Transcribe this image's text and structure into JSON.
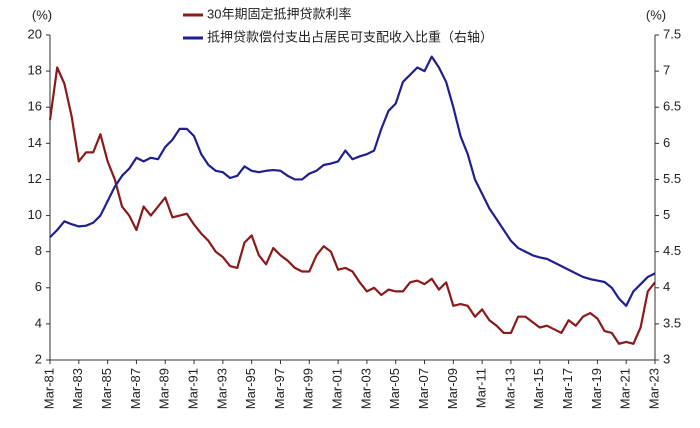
{
  "chart_data": {
    "type": "line",
    "y_label": "(%)",
    "y2_label": "(%)",
    "categories": [
      "Mar-81",
      null,
      null,
      null,
      "Mar-83",
      null,
      null,
      null,
      "Mar-85",
      null,
      null,
      null,
      "Mar-87",
      null,
      null,
      null,
      "Mar-89",
      null,
      null,
      null,
      "Mar-91",
      null,
      null,
      null,
      "Mar-93",
      null,
      null,
      null,
      "Mar-95",
      null,
      null,
      null,
      "Mar-97",
      null,
      null,
      null,
      "Mar-99",
      null,
      null,
      null,
      "Mar-01",
      null,
      null,
      null,
      "Mar-03",
      null,
      null,
      null,
      "Mar-05",
      null,
      null,
      null,
      "Mar-07",
      null,
      null,
      null,
      "Mar-09",
      null,
      null,
      null,
      "Mar-11",
      null,
      null,
      null,
      "Mar-13",
      null,
      null,
      null,
      "Mar-15",
      null,
      null,
      null,
      "Mar-17",
      null,
      null,
      null,
      "Mar-19",
      null,
      null,
      null,
      "Mar-21",
      null,
      null,
      null,
      "Mar-23"
    ],
    "series": [
      {
        "name": "30年期固定抵押贷款利率",
        "color": "#8b1a1a",
        "axis": "y",
        "values": [
          15.3,
          18.2,
          17.3,
          15.5,
          13.0,
          13.5,
          13.5,
          14.5,
          13.0,
          12.0,
          10.5,
          10.0,
          9.2,
          10.5,
          10.0,
          10.5,
          11.0,
          9.9,
          10.0,
          10.1,
          9.5,
          9.0,
          8.6,
          8.0,
          7.7,
          7.2,
          7.1,
          8.5,
          8.9,
          7.8,
          7.3,
          8.2,
          7.8,
          7.5,
          7.1,
          6.9,
          6.9,
          7.8,
          8.3,
          8.0,
          7.0,
          7.1,
          6.9,
          6.3,
          5.8,
          6.0,
          5.6,
          5.9,
          5.8,
          5.8,
          6.3,
          6.4,
          6.2,
          6.5,
          5.9,
          6.3,
          5.0,
          5.1,
          5.0,
          4.4,
          4.8,
          4.2,
          3.9,
          3.5,
          3.5,
          4.4,
          4.4,
          4.1,
          3.8,
          3.9,
          3.7,
          3.5,
          4.2,
          3.9,
          4.4,
          4.6,
          4.3,
          3.6,
          3.5,
          2.9,
          3.0,
          2.9,
          3.8,
          5.8,
          6.3
        ]
      },
      {
        "name": "抵押贷款偿付支出占居民可支配收入比重（右轴）",
        "color": "#1f1f8f",
        "axis": "y2",
        "values": [
          4.7,
          4.8,
          4.92,
          4.88,
          4.85,
          4.86,
          4.9,
          5.0,
          5.2,
          5.4,
          5.55,
          5.65,
          5.8,
          5.75,
          5.8,
          5.78,
          5.95,
          6.05,
          6.2,
          6.2,
          6.1,
          5.85,
          5.7,
          5.62,
          5.6,
          5.52,
          5.55,
          5.68,
          5.62,
          5.6,
          5.62,
          5.63,
          5.62,
          5.55,
          5.5,
          5.5,
          5.58,
          5.62,
          5.7,
          5.72,
          5.75,
          5.9,
          5.78,
          5.82,
          5.85,
          5.9,
          6.2,
          6.45,
          6.55,
          6.85,
          6.95,
          7.05,
          7.0,
          7.2,
          7.05,
          6.85,
          6.5,
          6.1,
          5.85,
          5.5,
          5.3,
          5.1,
          4.95,
          4.8,
          4.65,
          4.55,
          4.5,
          4.45,
          4.42,
          4.4,
          4.35,
          4.3,
          4.25,
          4.2,
          4.15,
          4.12,
          4.1,
          4.08,
          4.0,
          3.85,
          3.75,
          3.95,
          4.05,
          4.15,
          4.2
        ]
      }
    ],
    "ylim": [
      2,
      20
    ],
    "yticks": [
      2,
      4,
      6,
      8,
      10,
      12,
      14,
      16,
      18,
      20
    ],
    "y2lim": [
      3,
      7.5
    ],
    "y2ticks": [
      3,
      3.5,
      4,
      4.5,
      5,
      5.5,
      6,
      6.5,
      7,
      7.5
    ],
    "legend": "top"
  }
}
